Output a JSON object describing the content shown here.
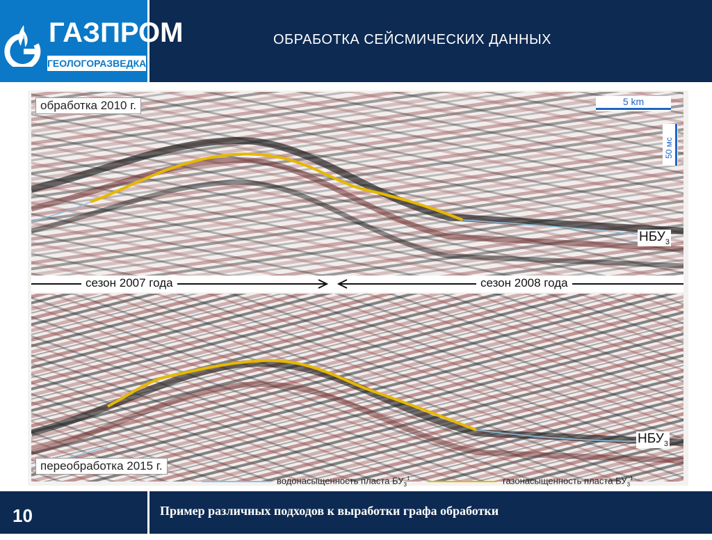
{
  "header": {
    "logo_top": "ГАЗПРОМ",
    "logo_bottom": "ГЕОЛОГОРАЗВЕДКА",
    "title": "ОБРАБОТКА  СЕЙСМИЧЕСКИХ ДАННЫХ"
  },
  "figure": {
    "top_label": "обработка 2010 г.",
    "bottom_label": "переобработка 2015 г.",
    "season_left": "сезон 2007 года",
    "season_right": "сезон 2008 года",
    "marker_text": "НБУ",
    "marker_sub": "3",
    "scale_h": "5 km",
    "scale_v": "50 мс",
    "legend_water": "водонасыщенность пласта БУ",
    "legend_gas": "газонасыщенность пласта БУ",
    "legend_sub": "3",
    "legend_sup": "1",
    "colors": {
      "water": "#8fbfe0",
      "gas": "#e6b800",
      "red_band": "#a05050",
      "dark_band": "#2a2a2a"
    }
  },
  "footer": {
    "page_number": "10",
    "title": "Пример различных подходов к выработки графа обработки"
  }
}
